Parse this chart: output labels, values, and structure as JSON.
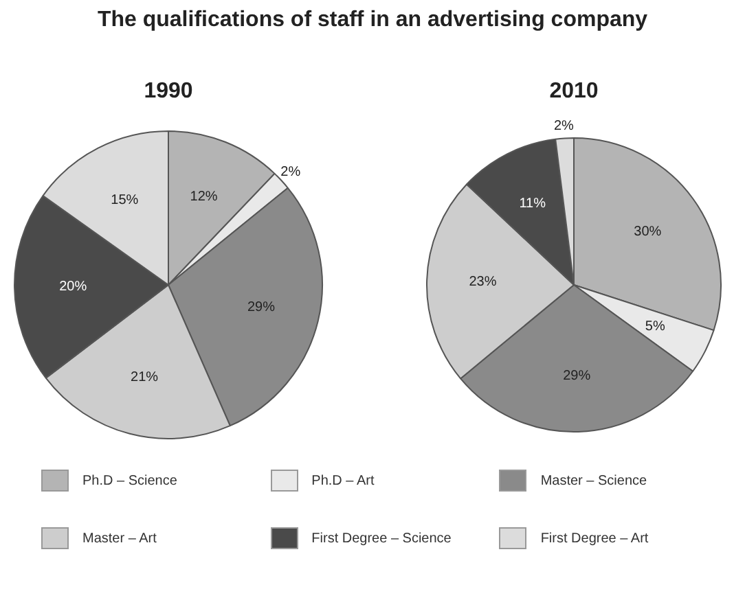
{
  "chart_data": {
    "type": "pie",
    "title": "The qualifications of staff in an advertising company",
    "legend": "bottom",
    "categories": [
      "Ph.D – Science",
      "Ph.D – Art",
      "Master – Science",
      "Master – Art",
      "First Degree – Science",
      "First Degree – Art"
    ],
    "colors": [
      "#b4b4b4",
      "#e9e9e9",
      "#8a8a8a",
      "#cdcdcd",
      "#4a4a4a",
      "#dcdcdc"
    ],
    "series": [
      {
        "name": "1990",
        "values": [
          12,
          2,
          29,
          21,
          20,
          15
        ],
        "value_labels": [
          "12%",
          "2%",
          "29%",
          "21%",
          "20%",
          "15%"
        ]
      },
      {
        "name": "2010",
        "values": [
          30,
          5,
          29,
          23,
          11,
          2
        ],
        "value_labels": [
          "30%",
          "5%",
          "29%",
          "23%",
          "11%",
          "2%"
        ]
      }
    ]
  }
}
